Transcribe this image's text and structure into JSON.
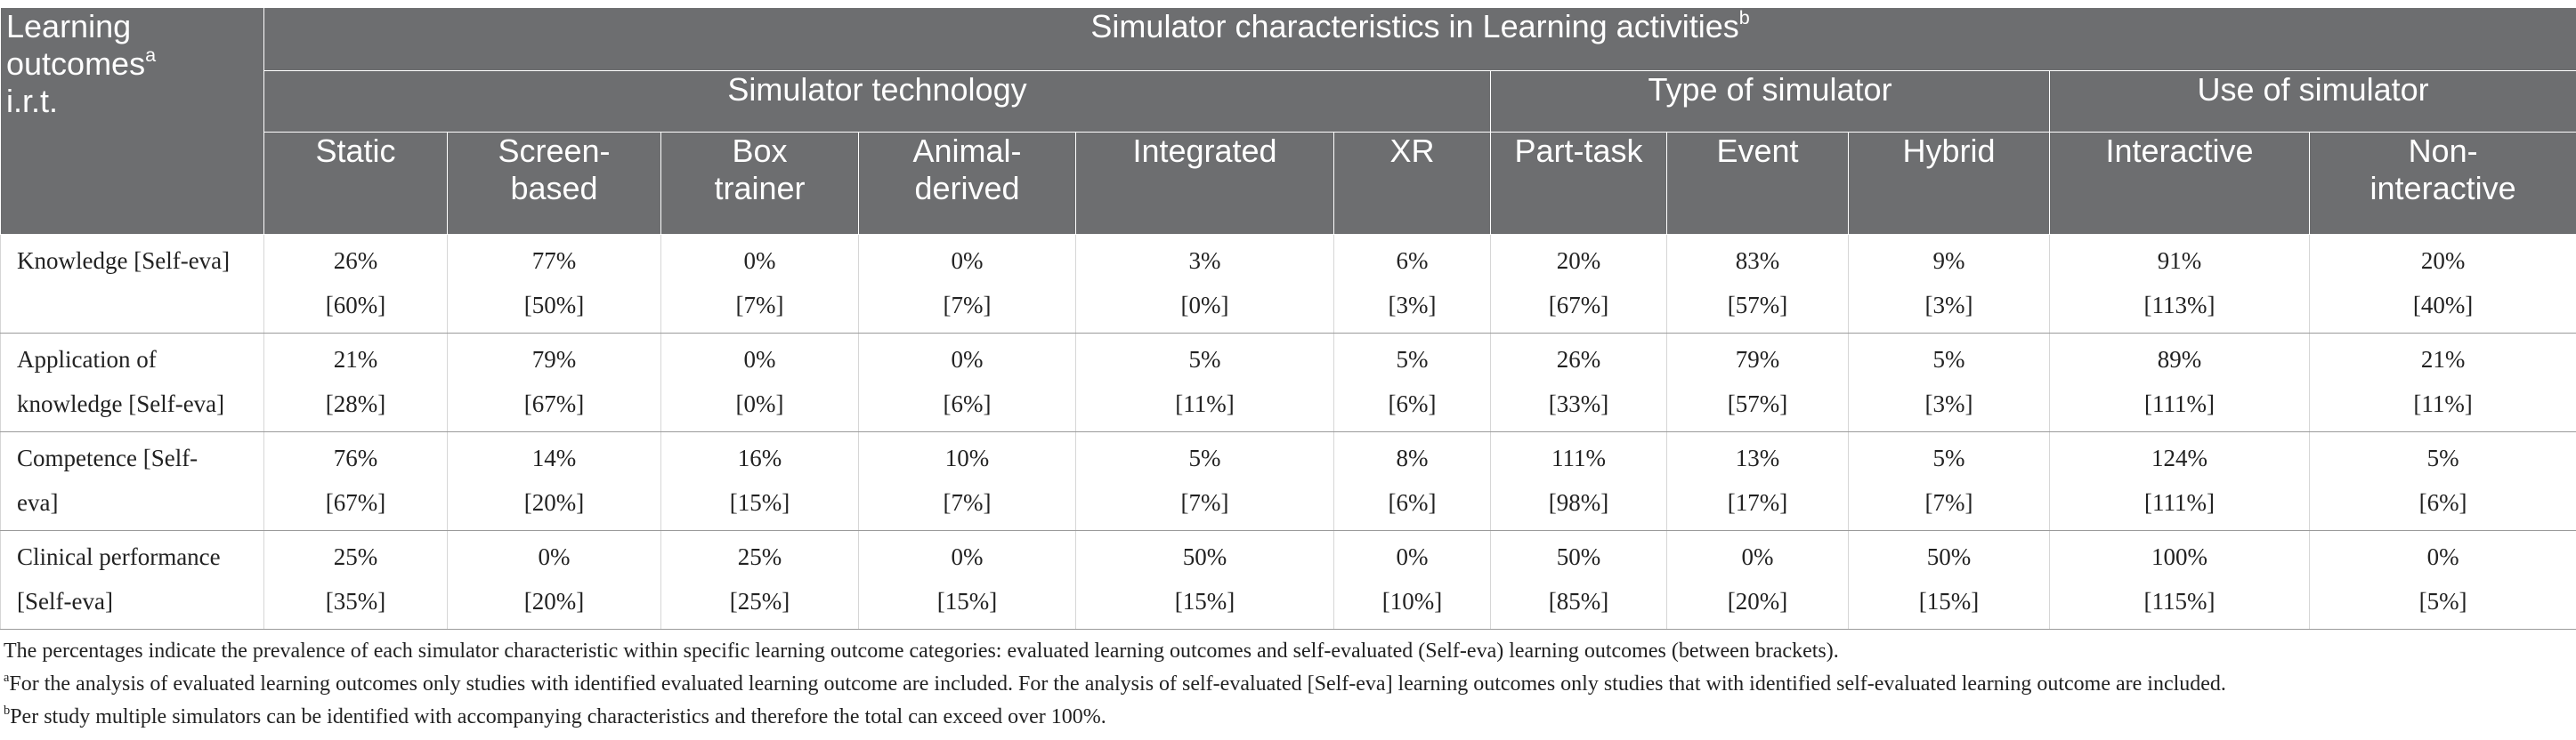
{
  "header": {
    "corner_label": "Learning outcomes",
    "corner_sup": "a",
    "corner_label_2": "i.r.t.",
    "main_title": "Simulator characteristics in Learning activities",
    "main_sup": "b",
    "groups": [
      "Simulator technology",
      "Type of simulator",
      "Use of simulator"
    ],
    "columns": [
      [
        "Static"
      ],
      [
        "Screen-",
        "based"
      ],
      [
        "Box",
        "trainer"
      ],
      [
        "Animal-",
        "derived"
      ],
      [
        "Integrated"
      ],
      [
        "XR"
      ],
      [
        "Part-task"
      ],
      [
        "Event"
      ],
      [
        "Hybrid"
      ],
      [
        "Interactive"
      ],
      [
        "Non-",
        "interactive"
      ]
    ]
  },
  "rows": [
    {
      "label": [
        "Knowledge [Self-eva]"
      ],
      "values": [
        "26%",
        "77%",
        "0%",
        "0%",
        "3%",
        "6%",
        "20%",
        "83%",
        "9%",
        "91%",
        "20%"
      ],
      "self": [
        "[60%]",
        "[50%]",
        "[7%]",
        "[7%]",
        "[0%]",
        "[3%]",
        "[67%]",
        "[57%]",
        "[3%]",
        "[113%]",
        "[40%]"
      ]
    },
    {
      "label": [
        "Application of",
        "knowledge [Self-eva]"
      ],
      "values": [
        "21%",
        "79%",
        "0%",
        "0%",
        "5%",
        "5%",
        "26%",
        "79%",
        "5%",
        "89%",
        "21%"
      ],
      "self": [
        "[28%]",
        "[67%]",
        "[0%]",
        "[6%]",
        "[11%]",
        "[6%]",
        "[33%]",
        "[57%]",
        "[3%]",
        "[111%]",
        "[11%]"
      ]
    },
    {
      "label": [
        "Competence [Self-",
        "eva]"
      ],
      "values": [
        "76%",
        "14%",
        "16%",
        "10%",
        "5%",
        "8%",
        "111%",
        "13%",
        "5%",
        "124%",
        "5%"
      ],
      "self": [
        "[67%]",
        "[20%]",
        "[15%]",
        "[7%]",
        "[7%]",
        "[6%]",
        "[98%]",
        "[17%]",
        "[7%]",
        "[111%]",
        "[6%]"
      ]
    },
    {
      "label": [
        "Clinical performance",
        "[Self-eva]"
      ],
      "values": [
        "25%",
        "0%",
        "25%",
        "0%",
        "50%",
        "0%",
        "50%",
        "0%",
        "50%",
        "100%",
        "0%"
      ],
      "self": [
        "[35%]",
        "[20%]",
        "[25%]",
        "[15%]",
        "[15%]",
        "[10%]",
        "[85%]",
        "[20%]",
        "[15%]",
        "[115%]",
        "[5%]"
      ]
    }
  ],
  "footnotes": [
    {
      "sup": "",
      "text": "The percentages indicate the prevalence of each simulator characteristic within specific learning outcome categories: evaluated learning outcomes and self-evaluated (Self-eva) learning outcomes (between brackets)."
    },
    {
      "sup": "a",
      "text": "For the analysis of evaluated learning outcomes only studies with identified evaluated learning outcome are included. For the analysis of self-evaluated [Self-eva] learning outcomes only studies that with identified self-evaluated learning outcome are included."
    },
    {
      "sup": "b",
      "text": "Per study multiple simulators can be identified with accompanying characteristics and therefore the total can exceed over 100%."
    }
  ]
}
